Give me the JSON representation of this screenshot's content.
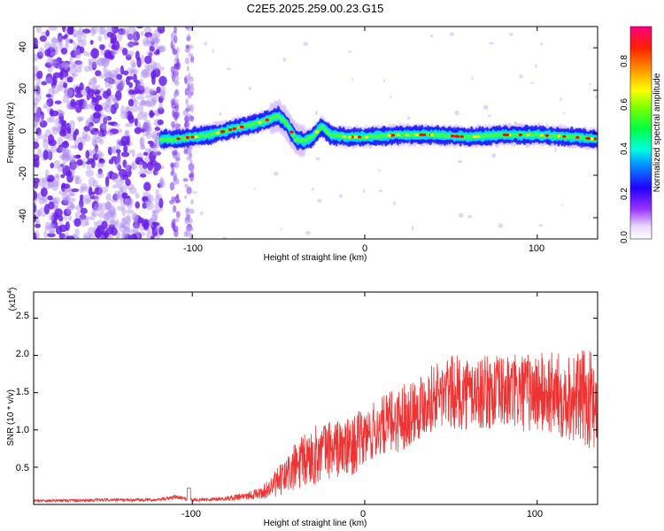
{
  "chart_data": [
    {
      "type": "heatmap",
      "title": "C2E5.2025.259.00.23.G15",
      "xlabel": "Height of straight line (km)",
      "ylabel": "Frequency (Hz)",
      "xlim": [
        -192,
        135
      ],
      "ylim": [
        -50,
        50
      ],
      "xticks": [
        -100,
        0,
        100
      ],
      "yticks": [
        40,
        20,
        0,
        -20,
        -40
      ],
      "ytick_labels": [
        "40",
        "20",
        "0",
        "-20",
        "-40"
      ],
      "colorbar": {
        "label": "Normalized spectral amplitude",
        "range": [
          0,
          0.95
        ],
        "ticks": [
          0.0,
          0.2,
          0.4,
          0.6,
          0.8
        ],
        "tick_labels": [
          "0.0",
          "0.2",
          "0.4",
          "0.6",
          "0.8"
        ]
      },
      "ridge": {
        "x": [
          -118,
          -110,
          -100,
          -90,
          -80,
          -70,
          -60,
          -50,
          -45,
          -40,
          -35,
          -30,
          -25,
          -20,
          -10,
          0,
          20,
          40,
          60,
          80,
          100,
          120,
          135
        ],
        "y": [
          -3,
          -3,
          -2,
          -1,
          1,
          3,
          5,
          8,
          4,
          -3,
          -4,
          -2,
          3,
          -1,
          -2,
          -2,
          -1,
          -1,
          -2,
          -1,
          -1,
          -2,
          -3
        ],
        "description": "dominant frequency track"
      }
    },
    {
      "type": "line",
      "xlabel": "Height of straight line (km)",
      "ylabel": "SNR (10 * v/v)",
      "scale_label": "(x10",
      "scale_exp": "4",
      "scale_close": ")",
      "xlim": [
        -192,
        135
      ],
      "ylim": [
        0,
        2.85
      ],
      "xticks": [
        -100,
        0,
        100
      ],
      "yticks": [
        0.5,
        1.0,
        1.5,
        2.0,
        2.5
      ],
      "ytick_labels": [
        "0.5",
        "1.0",
        "1.5",
        "2.0",
        "2.5"
      ],
      "series": [
        {
          "name": "SNR",
          "color": "#ee3333",
          "envelope_x": [
            -192,
            -150,
            -120,
            -110,
            -100,
            -80,
            -60,
            -50,
            -40,
            -30,
            -20,
            -10,
            0,
            10,
            20,
            30,
            40,
            50,
            60,
            80,
            100,
            120,
            135
          ],
          "envelope_mean": [
            0.05,
            0.06,
            0.06,
            0.1,
            0.06,
            0.08,
            0.15,
            0.3,
            0.5,
            0.65,
            0.75,
            0.75,
            0.9,
            1.05,
            1.15,
            1.3,
            1.45,
            1.5,
            1.5,
            1.5,
            1.5,
            1.45,
            1.4
          ],
          "envelope_spread": [
            0.02,
            0.02,
            0.02,
            0.03,
            0.02,
            0.03,
            0.08,
            0.2,
            0.35,
            0.4,
            0.4,
            0.4,
            0.4,
            0.4,
            0.45,
            0.45,
            0.45,
            0.5,
            0.5,
            0.5,
            0.55,
            0.6,
            0.7
          ]
        }
      ]
    }
  ],
  "colors": {
    "heat_low": "#b090f0",
    "heat_blue": "#2020ff",
    "heat_cyan": "#00e0ff",
    "heat_green": "#40ff40",
    "heat_yellow": "#ffff00",
    "heat_red": "#ff0000",
    "line": "#ee3333"
  }
}
